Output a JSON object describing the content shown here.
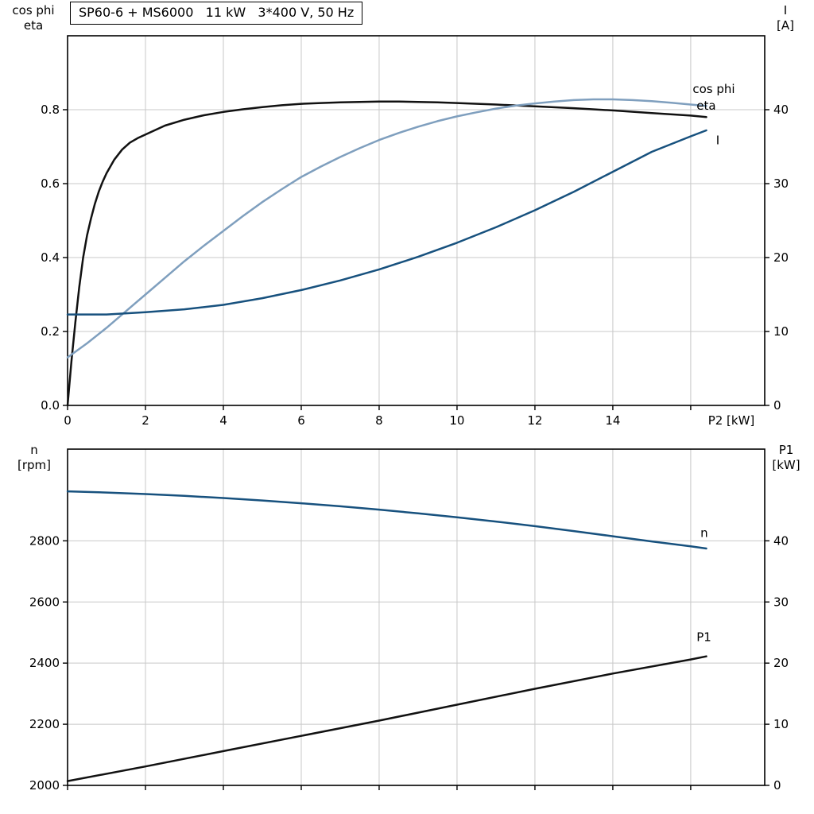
{
  "title_box": {
    "text": "SP60-6 + MS6000   11 kW   3*400 V, 50 Hz"
  },
  "colors": {
    "black": "#111111",
    "cosphi": "#7f9fbe",
    "darkblue": "#17517e",
    "grid": "#c8c8c8",
    "axis": "#000000"
  },
  "corner_labels": {
    "top_left": [
      "cos phi",
      "eta"
    ],
    "top_right": [
      "I",
      "[A]"
    ],
    "bottom_left": [
      "n",
      "[rpm]"
    ],
    "bottom_right": [
      "P1",
      "[kW]"
    ]
  },
  "chart_data": [
    {
      "type": "line",
      "title": "SP60-6 + MS6000   11 kW   3*400 V, 50 Hz",
      "x_label": "P2 [kW]",
      "x_range": [
        0,
        17.9
      ],
      "grid": true,
      "x_ticks": [
        {
          "v": 0,
          "label": "0"
        },
        {
          "v": 2,
          "label": "2"
        },
        {
          "v": 4,
          "label": "4"
        },
        {
          "v": 6,
          "label": "6"
        },
        {
          "v": 8,
          "label": "8"
        },
        {
          "v": 10,
          "label": "10"
        },
        {
          "v": 12,
          "label": "12"
        },
        {
          "v": 14,
          "label": "14"
        },
        {
          "v": 16,
          "label": ""
        }
      ],
      "left_axis": {
        "label": "cos phi / eta",
        "range": [
          0,
          1.0
        ],
        "ticks": [
          {
            "v": 0,
            "label": "0.0"
          },
          {
            "v": 0.2,
            "label": "0.2"
          },
          {
            "v": 0.4,
            "label": "0.4"
          },
          {
            "v": 0.6,
            "label": "0.6"
          },
          {
            "v": 0.8,
            "label": "0.8"
          }
        ]
      },
      "right_axis": {
        "label": "I [A]",
        "range": [
          0,
          50
        ],
        "ticks": [
          {
            "v": 0,
            "label": "0"
          },
          {
            "v": 10,
            "label": "10"
          },
          {
            "v": 20,
            "label": "20"
          },
          {
            "v": 30,
            "label": "30"
          },
          {
            "v": 40,
            "label": "40"
          }
        ]
      },
      "series": [
        {
          "name": "eta",
          "axis": "left",
          "color_key": "black",
          "points": [
            [
              0,
              0
            ],
            [
              0.1,
              0.12
            ],
            [
              0.2,
              0.225
            ],
            [
              0.3,
              0.32
            ],
            [
              0.4,
              0.4
            ],
            [
              0.5,
              0.46
            ],
            [
              0.6,
              0.505
            ],
            [
              0.7,
              0.545
            ],
            [
              0.8,
              0.578
            ],
            [
              0.9,
              0.605
            ],
            [
              1,
              0.628
            ],
            [
              1.2,
              0.665
            ],
            [
              1.4,
              0.692
            ],
            [
              1.6,
              0.711
            ],
            [
              1.8,
              0.723
            ],
            [
              2,
              0.733
            ],
            [
              2.5,
              0.757
            ],
            [
              3,
              0.773
            ],
            [
              3.5,
              0.785
            ],
            [
              4,
              0.794
            ],
            [
              4.5,
              0.801
            ],
            [
              5,
              0.807
            ],
            [
              5.5,
              0.812
            ],
            [
              6,
              0.816
            ],
            [
              6.5,
              0.818
            ],
            [
              7,
              0.82
            ],
            [
              7.5,
              0.821
            ],
            [
              8,
              0.822
            ],
            [
              8.5,
              0.822
            ],
            [
              9,
              0.821
            ],
            [
              9.5,
              0.82
            ],
            [
              10,
              0.818
            ],
            [
              11,
              0.814
            ],
            [
              12,
              0.809
            ],
            [
              13,
              0.804
            ],
            [
              14,
              0.798
            ],
            [
              15,
              0.791
            ],
            [
              16,
              0.784
            ],
            [
              16.4,
              0.78
            ]
          ]
        },
        {
          "name": "cos phi",
          "axis": "left",
          "color_key": "cosphi",
          "points": [
            [
              0,
              0.13
            ],
            [
              0.5,
              0.168
            ],
            [
              1,
              0.21
            ],
            [
              1.5,
              0.255
            ],
            [
              2,
              0.3
            ],
            [
              2.5,
              0.345
            ],
            [
              3,
              0.39
            ],
            [
              3.5,
              0.432
            ],
            [
              4,
              0.472
            ],
            [
              4.5,
              0.512
            ],
            [
              5,
              0.55
            ],
            [
              5.5,
              0.585
            ],
            [
              6,
              0.618
            ],
            [
              6.5,
              0.646
            ],
            [
              7,
              0.672
            ],
            [
              7.5,
              0.696
            ],
            [
              8,
              0.718
            ],
            [
              8.5,
              0.737
            ],
            [
              9,
              0.754
            ],
            [
              9.5,
              0.769
            ],
            [
              10,
              0.782
            ],
            [
              10.5,
              0.793
            ],
            [
              11,
              0.803
            ],
            [
              11.5,
              0.811
            ],
            [
              12,
              0.817
            ],
            [
              12.5,
              0.822
            ],
            [
              13,
              0.826
            ],
            [
              13.5,
              0.828
            ],
            [
              14,
              0.828
            ],
            [
              14.5,
              0.826
            ],
            [
              15,
              0.823
            ],
            [
              15.5,
              0.819
            ],
            [
              16,
              0.814
            ],
            [
              16.4,
              0.81
            ]
          ]
        },
        {
          "name": "I",
          "axis": "right",
          "color_key": "darkblue",
          "points": [
            [
              0,
              12.3
            ],
            [
              1,
              12.3
            ],
            [
              2,
              12.6
            ],
            [
              3,
              13.0
            ],
            [
              4,
              13.6
            ],
            [
              5,
              14.5
            ],
            [
              6,
              15.6
            ],
            [
              7,
              16.9
            ],
            [
              8,
              18.4
            ],
            [
              9,
              20.1
            ],
            [
              10,
              22.0
            ],
            [
              11,
              24.1
            ],
            [
              12,
              26.4
            ],
            [
              13,
              28.9
            ],
            [
              14,
              31.6
            ],
            [
              15,
              34.3
            ],
            [
              16,
              36.4
            ],
            [
              16.4,
              37.2
            ]
          ]
        }
      ],
      "curve_labels": [
        {
          "text": "cos phi",
          "x": 16.05,
          "y": 0.845,
          "axis": "left",
          "color_key": "cosphi"
        },
        {
          "text": "eta",
          "x": 16.15,
          "y": 0.8,
          "axis": "left",
          "color_key": "black"
        },
        {
          "text": "I",
          "x": 16.65,
          "y": 35.3,
          "axis": "right",
          "color_key": "darkblue"
        }
      ]
    },
    {
      "type": "line",
      "title": "",
      "x_label": "",
      "x_range": [
        0,
        17.9
      ],
      "grid": true,
      "x_ticks": [
        {
          "v": 0,
          "label": ""
        },
        {
          "v": 2,
          "label": ""
        },
        {
          "v": 4,
          "label": ""
        },
        {
          "v": 6,
          "label": ""
        },
        {
          "v": 8,
          "label": ""
        },
        {
          "v": 10,
          "label": ""
        },
        {
          "v": 12,
          "label": ""
        },
        {
          "v": 14,
          "label": ""
        },
        {
          "v": 16,
          "label": ""
        }
      ],
      "left_axis": {
        "label": "n [rpm]",
        "range": [
          2000,
          3100
        ],
        "ticks": [
          {
            "v": 2000,
            "label": "2000"
          },
          {
            "v": 2200,
            "label": "2200"
          },
          {
            "v": 2400,
            "label": "2400"
          },
          {
            "v": 2600,
            "label": "2600"
          },
          {
            "v": 2800,
            "label": "2800"
          }
        ]
      },
      "right_axis": {
        "label": "P1 [kW]",
        "range": [
          0,
          55
        ],
        "ticks": [
          {
            "v": 0,
            "label": "0"
          },
          {
            "v": 10,
            "label": "10"
          },
          {
            "v": 20,
            "label": "20"
          },
          {
            "v": 30,
            "label": "30"
          },
          {
            "v": 40,
            "label": "40"
          }
        ]
      },
      "series": [
        {
          "name": "n",
          "axis": "left",
          "color_key": "darkblue",
          "points": [
            [
              0,
              2962
            ],
            [
              1,
              2958
            ],
            [
              2,
              2953
            ],
            [
              3,
              2947
            ],
            [
              4,
              2940
            ],
            [
              5,
              2932
            ],
            [
              6,
              2923
            ],
            [
              7,
              2913
            ],
            [
              8,
              2902
            ],
            [
              9,
              2890
            ],
            [
              10,
              2877
            ],
            [
              11,
              2863
            ],
            [
              12,
              2848
            ],
            [
              13,
              2832
            ],
            [
              14,
              2815
            ],
            [
              15,
              2798
            ],
            [
              16,
              2782
            ],
            [
              16.4,
              2775
            ]
          ]
        },
        {
          "name": "P1",
          "axis": "right",
          "color_key": "black",
          "points": [
            [
              0,
              0.7
            ],
            [
              2,
              3.1
            ],
            [
              4,
              5.6
            ],
            [
              6,
              8.1
            ],
            [
              8,
              10.6
            ],
            [
              10,
              13.2
            ],
            [
              12,
              15.8
            ],
            [
              14,
              18.3
            ],
            [
              16,
              20.6
            ],
            [
              16.4,
              21.1
            ]
          ]
        }
      ],
      "curve_labels": [
        {
          "text": "n",
          "x": 16.25,
          "y": 2812,
          "axis": "left",
          "color_key": "darkblue"
        },
        {
          "text": "P1",
          "x": 16.15,
          "y": 23.6,
          "axis": "right",
          "color_key": "black"
        }
      ]
    }
  ]
}
